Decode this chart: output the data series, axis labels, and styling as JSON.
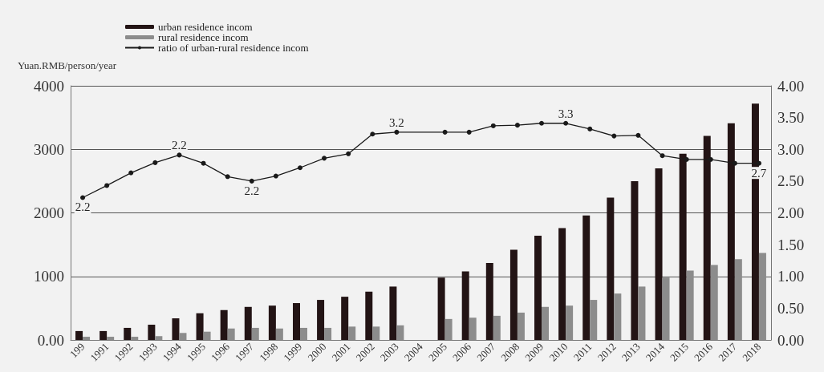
{
  "chart_data": {
    "type": "bar",
    "ylabel": "Yuan.RMB/person/year",
    "categories": [
      "199",
      "1991",
      "1992",
      "1993",
      "1994",
      "1995",
      "1996",
      "1997",
      "1998",
      "1999",
      "2000",
      "2001",
      "2002",
      "2003",
      "2004",
      "2005",
      "2006",
      "2007",
      "2008",
      "2009",
      "2010",
      "2011",
      "2012",
      "2013",
      "2014",
      "2015",
      "2016",
      "2017",
      "2018"
    ],
    "series": [
      {
        "name": "urban residence incom",
        "color": "#231415",
        "values": [
          140,
          140,
          190,
          240,
          340,
          420,
          470,
          520,
          540,
          580,
          630,
          680,
          760,
          840,
          null,
          980,
          1080,
          1210,
          1420,
          1640,
          1760,
          1960,
          2240,
          2500,
          2700,
          2930,
          3210,
          3410,
          3720
        ]
      },
      {
        "name": "rural residence incom",
        "color": "#8c8c8c",
        "values": [
          50,
          50,
          50,
          60,
          110,
          130,
          180,
          190,
          180,
          190,
          190,
          210,
          210,
          230,
          null,
          330,
          350,
          380,
          430,
          520,
          540,
          630,
          730,
          840,
          980,
          1090,
          1180,
          1270,
          1370
        ]
      },
      {
        "name": "ratio of urban-rural residence incom",
        "type": "line",
        "axis": "y2",
        "color": "#1a1a1a",
        "marker": "circle",
        "values": [
          2.24,
          2.43,
          2.63,
          2.79,
          2.91,
          2.78,
          2.57,
          2.5,
          2.58,
          2.71,
          2.86,
          2.93,
          3.24,
          3.27,
          null,
          3.27,
          3.27,
          3.37,
          3.38,
          3.41,
          3.41,
          3.32,
          3.21,
          3.22,
          2.9,
          2.84,
          2.84,
          2.78,
          2.78
        ]
      }
    ],
    "ylim": [
      0,
      4000
    ],
    "yticks": [
      {
        "value": 0,
        "label": "0.00"
      },
      1000,
      2000,
      3000,
      4000
    ],
    "y2lim": [
      0,
      4
    ],
    "y2ticks": [
      {
        "value": 0,
        "label": "0.00"
      },
      {
        "value": 0.5,
        "label": "0.50"
      },
      {
        "value": 1,
        "label": "1.00"
      },
      {
        "value": 1.5,
        "label": "1.50"
      },
      {
        "value": 2,
        "label": "2.00"
      },
      {
        "value": 2.5,
        "label": "2.50"
      },
      {
        "value": 3,
        "label": "3.00"
      },
      {
        "value": 3.5,
        "label": "3.50"
      },
      {
        "value": 4,
        "label": "4.00"
      }
    ],
    "annotations": [
      {
        "text": "2.2",
        "x": "199",
        "y": 2240
      },
      {
        "text": "2.2",
        "x": "1994",
        "y": 2910
      },
      {
        "text": "2.2",
        "x": "1997",
        "y": 2500
      },
      {
        "text": "3.2",
        "x": "2003",
        "y": 3270
      },
      {
        "text": "3.3",
        "x": "2010",
        "y": 3410
      },
      {
        "text": "2.7",
        "x": "2018",
        "y": 2780
      }
    ],
    "grid": "y",
    "legend": "top left"
  }
}
